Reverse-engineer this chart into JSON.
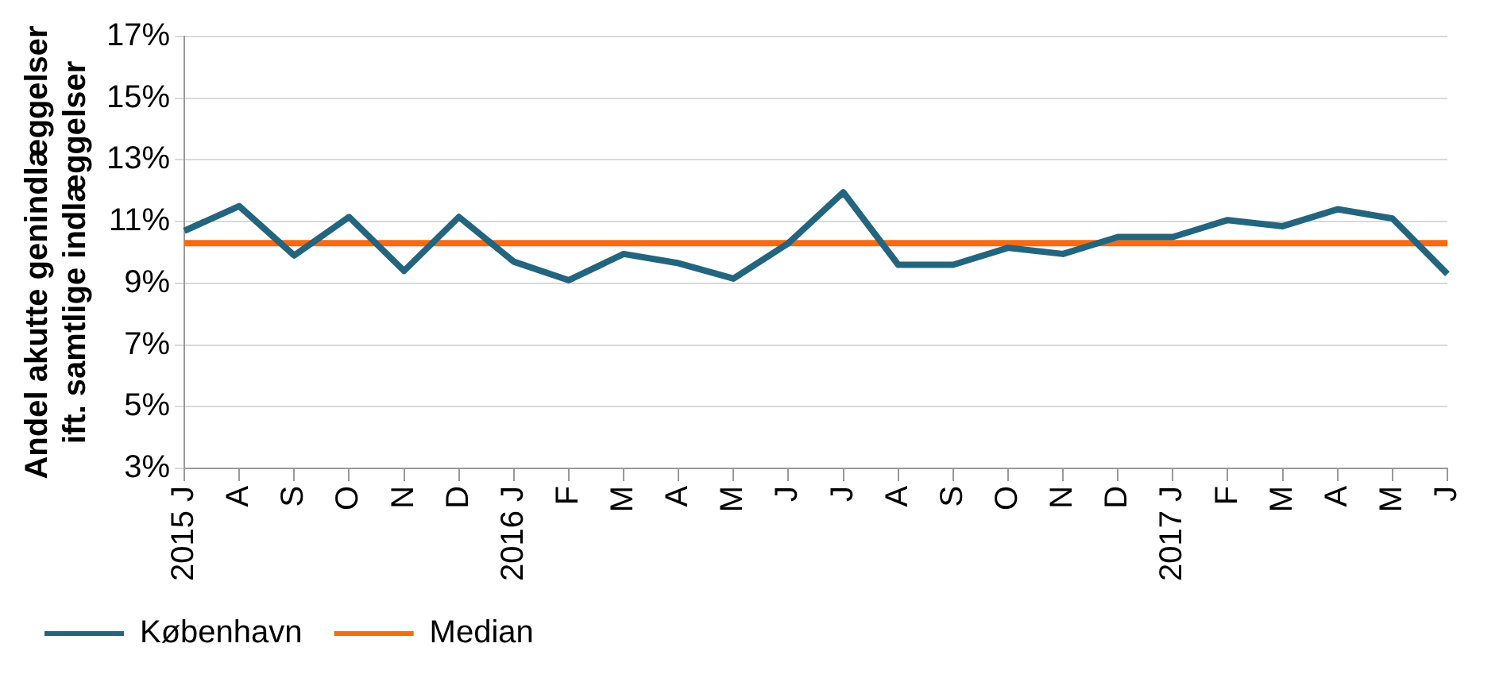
{
  "chart_data": {
    "type": "line",
    "ylabel": "Andel akutte genindlæggelser ift. samtlige indlæggelser",
    "categories": [
      "2015 J",
      "A",
      "S",
      "O",
      "N",
      "D",
      "2016 J",
      "F",
      "M",
      "A",
      "M",
      "J",
      "J",
      "A",
      "S",
      "O",
      "N",
      "D",
      "2017 J",
      "F",
      "M",
      "A",
      "M",
      "J"
    ],
    "series": [
      {
        "name": "København",
        "color": "#23657f",
        "values": [
          10.7,
          11.5,
          9.9,
          11.15,
          9.4,
          11.15,
          9.7,
          9.1,
          9.95,
          9.65,
          9.15,
          10.3,
          11.95,
          9.6,
          9.6,
          10.15,
          9.95,
          10.5,
          10.5,
          11.05,
          10.85,
          11.4,
          11.1,
          9.3
        ]
      },
      {
        "name": "Median",
        "color": "#f96a14",
        "values": [
          10.3,
          10.3,
          10.3,
          10.3,
          10.3,
          10.3,
          10.3,
          10.3,
          10.3,
          10.3,
          10.3,
          10.3,
          10.3,
          10.3,
          10.3,
          10.3,
          10.3,
          10.3,
          10.3,
          10.3,
          10.3,
          10.3,
          10.3,
          10.3
        ]
      }
    ],
    "ylim": [
      3,
      17
    ],
    "yticks": [
      {
        "value": 3,
        "label": "3%"
      },
      {
        "value": 5,
        "label": "5%"
      },
      {
        "value": 7,
        "label": "7%"
      },
      {
        "value": 9,
        "label": "9%"
      },
      {
        "value": 11,
        "label": "11%"
      },
      {
        "value": 13,
        "label": "13%"
      },
      {
        "value": 15,
        "label": "15%"
      },
      {
        "value": 17,
        "label": "17%"
      }
    ],
    "grid": "y",
    "legend": "bottom",
    "marker": "none",
    "line_style": "solid"
  }
}
